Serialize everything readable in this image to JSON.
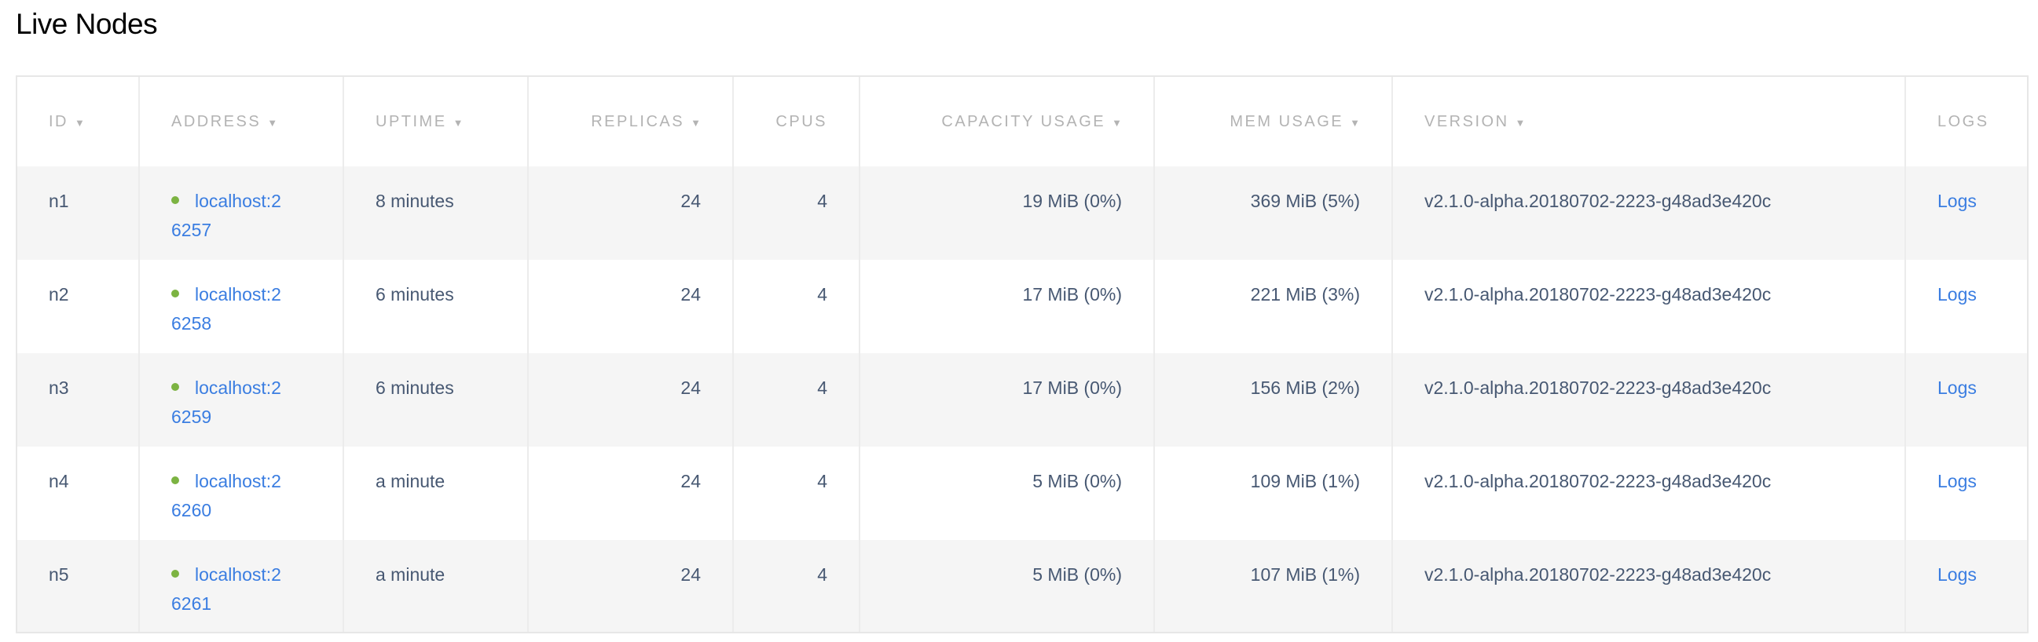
{
  "title": "Live Nodes",
  "columns": [
    {
      "label": "ID",
      "sortable": true
    },
    {
      "label": "ADDRESS",
      "sortable": true
    },
    {
      "label": "UPTIME",
      "sortable": true
    },
    {
      "label": "REPLICAS",
      "sortable": true
    },
    {
      "label": "CPUS",
      "sortable": false
    },
    {
      "label": "CAPACITY USAGE",
      "sortable": true
    },
    {
      "label": "MEM USAGE",
      "sortable": true
    },
    {
      "label": "VERSION",
      "sortable": true
    },
    {
      "label": "LOGS",
      "sortable": false
    }
  ],
  "sort_icon": "triangle-down",
  "status_color": "#7cb342",
  "rows": [
    {
      "id": "n1",
      "address": "localhost:26257",
      "uptime": "8 minutes",
      "replicas": "24",
      "cpus": "4",
      "capacity": "19 MiB (0%)",
      "mem": "369 MiB (5%)",
      "version": "v2.1.0-alpha.20180702-2223-g48ad3e420c",
      "logs": "Logs"
    },
    {
      "id": "n2",
      "address": "localhost:26258",
      "uptime": "6 minutes",
      "replicas": "24",
      "cpus": "4",
      "capacity": "17 MiB (0%)",
      "mem": "221 MiB (3%)",
      "version": "v2.1.0-alpha.20180702-2223-g48ad3e420c",
      "logs": "Logs"
    },
    {
      "id": "n3",
      "address": "localhost:26259",
      "uptime": "6 minutes",
      "replicas": "24",
      "cpus": "4",
      "capacity": "17 MiB (0%)",
      "mem": "156 MiB (2%)",
      "version": "v2.1.0-alpha.20180702-2223-g48ad3e420c",
      "logs": "Logs"
    },
    {
      "id": "n4",
      "address": "localhost:26260",
      "uptime": "a minute",
      "replicas": "24",
      "cpus": "4",
      "capacity": "5 MiB (0%)",
      "mem": "109 MiB (1%)",
      "version": "v2.1.0-alpha.20180702-2223-g48ad3e420c",
      "logs": "Logs"
    },
    {
      "id": "n5",
      "address": "localhost:26261",
      "uptime": "a minute",
      "replicas": "24",
      "cpus": "4",
      "capacity": "5 MiB (0%)",
      "mem": "107 MiB (1%)",
      "version": "v2.1.0-alpha.20180702-2223-g48ad3e420c",
      "logs": "Logs"
    }
  ]
}
